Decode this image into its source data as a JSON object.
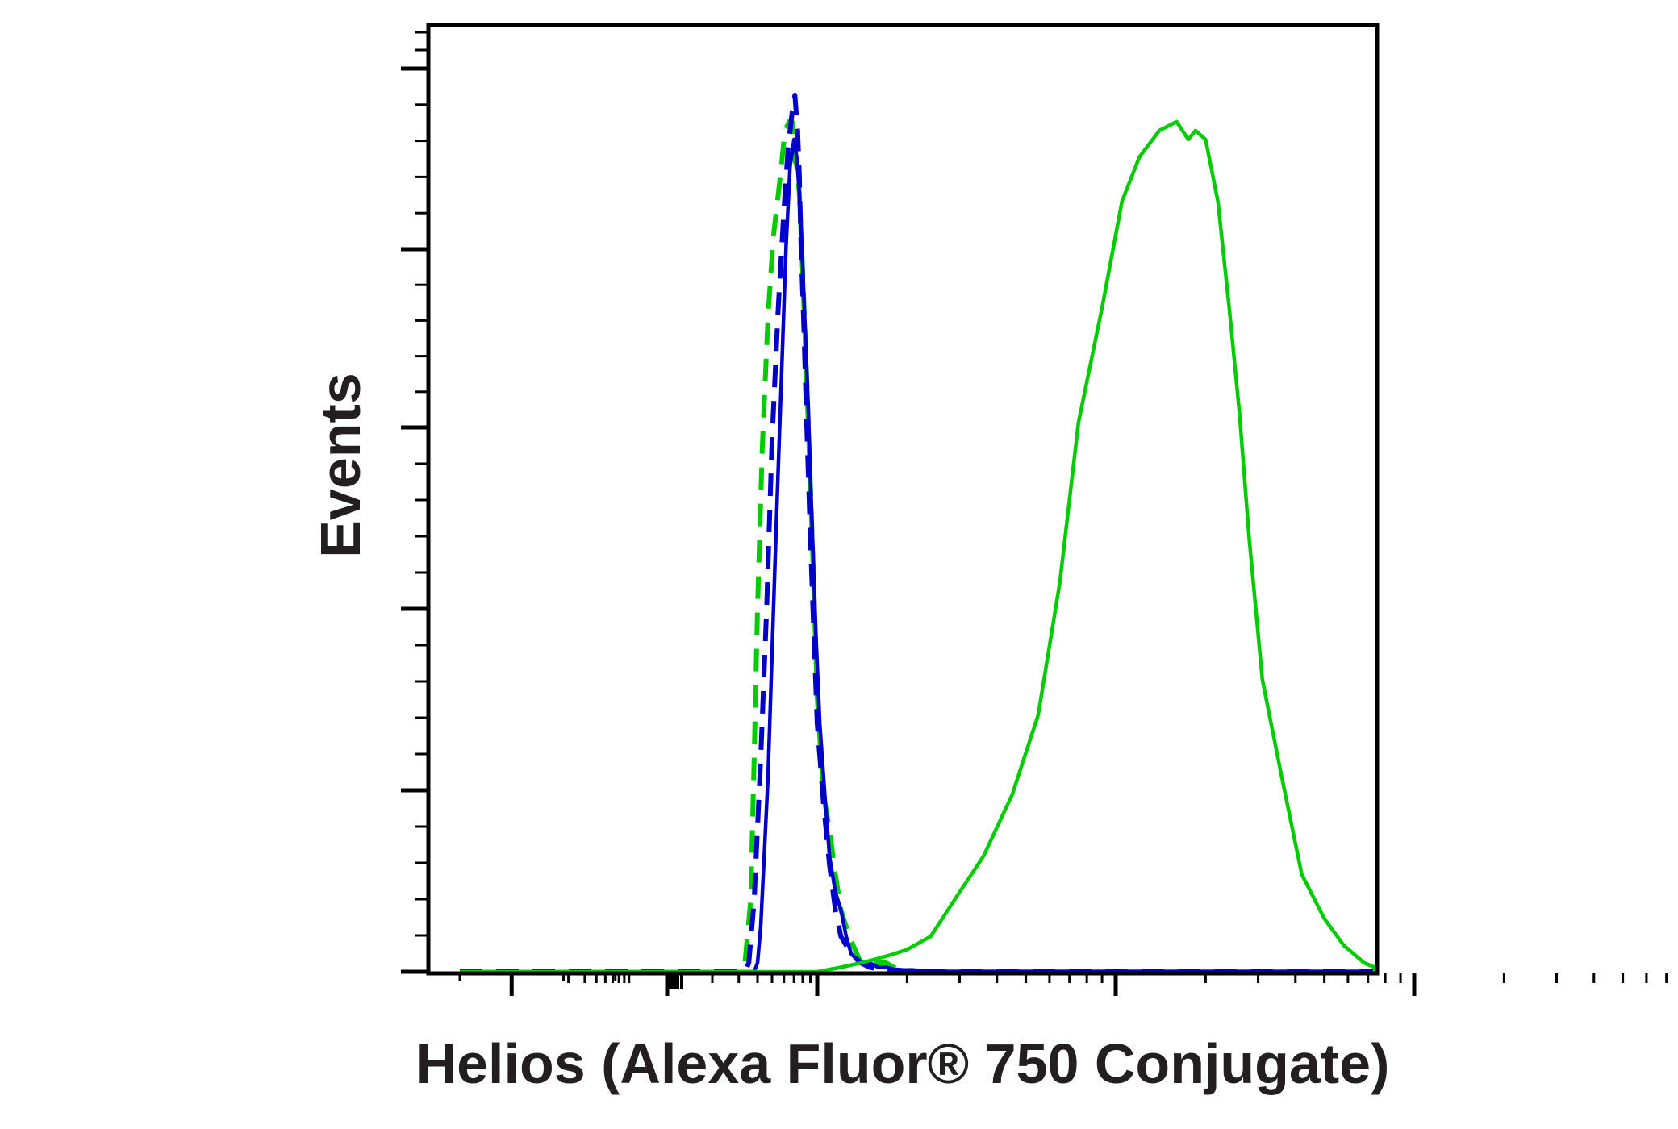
{
  "chart_data": {
    "type": "line",
    "title": "",
    "xlabel": "Helios (Alexa Fluor® 750 Conjugate)",
    "ylabel": "Events",
    "x_scale": "log",
    "xlim": [
      -100,
      1000000
    ],
    "ylim": [
      0,
      1
    ],
    "x_tick_labels": [],
    "y_tick_labels": [],
    "grid": false,
    "legend": "none",
    "series": [
      {
        "style": "dashed",
        "color": "#00cc00",
        "x": [
          -100,
          100,
          200,
          290,
          330,
          360,
          380,
          400,
          430,
          470,
          510,
          560,
          610,
          650,
          680,
          700,
          730,
          760,
          800,
          850,
          900,
          950,
          1000,
          1050,
          1100,
          1150,
          1200,
          1280,
          1400,
          1550,
          1700,
          1800,
          1900,
          2000,
          2200,
          10000,
          1000000
        ],
        "y": [
          0,
          0,
          0,
          0,
          0.01,
          0.08,
          0.24,
          0.41,
          0.59,
          0.74,
          0.83,
          0.89,
          0.95,
          0.96,
          0.96,
          0.92,
          0.91,
          0.88,
          0.79,
          0.67,
          0.55,
          0.43,
          0.31,
          0.2,
          0.16,
          0.11,
          0.07,
          0.04,
          0.01,
          0.01,
          0.01,
          0.005,
          0.003,
          0.002,
          0,
          0,
          0
        ]
      },
      {
        "style": "dashed",
        "color": "#0000cc",
        "x": [
          -100,
          100,
          200,
          330,
          350,
          380,
          420,
          460,
          500,
          550,
          600,
          640,
          680,
          710,
          740,
          760,
          780,
          810,
          850,
          900,
          950,
          1000,
          1050,
          1100,
          1150,
          1200,
          1300,
          1400,
          1500,
          1600,
          1700,
          1800,
          2000,
          10000,
          1000000
        ],
        "y": [
          0,
          0,
          0,
          0,
          0.01,
          0.08,
          0.24,
          0.41,
          0.6,
          0.75,
          0.86,
          0.93,
          0.97,
          0.99,
          0.95,
          0.9,
          0.82,
          0.74,
          0.62,
          0.49,
          0.38,
          0.28,
          0.19,
          0.12,
          0.07,
          0.04,
          0.02,
          0.01,
          0.005,
          0.003,
          0.002,
          0.001,
          0,
          0,
          0
        ]
      },
      {
        "style": "solid",
        "color": "#0000cc",
        "x": [
          -100,
          100,
          200,
          380,
          400,
          420,
          440,
          470,
          500,
          540,
          580,
          620,
          660,
          700,
          730,
          760,
          790,
          830,
          870,
          900,
          940,
          980,
          1020,
          1060,
          1100,
          1150,
          1200,
          1250,
          1300,
          1400,
          1500,
          1600,
          1700,
          1800,
          1950,
          2100,
          2250,
          2400,
          2600,
          10000,
          1000000
        ],
        "y": [
          0,
          0,
          0,
          0,
          0.01,
          0.05,
          0.12,
          0.22,
          0.36,
          0.53,
          0.68,
          0.82,
          0.91,
          0.94,
          0.92,
          0.88,
          0.82,
          0.73,
          0.64,
          0.56,
          0.47,
          0.38,
          0.28,
          0.2,
          0.13,
          0.09,
          0.07,
          0.04,
          0.02,
          0.01,
          0.01,
          0.005,
          0.005,
          0.003,
          0.002,
          0.002,
          0.001,
          0,
          0,
          0,
          0
        ]
      },
      {
        "style": "solid",
        "color": "#00cc00",
        "x": [
          -100,
          100,
          200,
          1000,
          1200,
          1400,
          1600,
          1800,
          2000,
          2400,
          3000,
          3600,
          4500,
          5500,
          6500,
          7500,
          9000,
          10500,
          12000,
          14000,
          16000,
          17500,
          18500,
          20000,
          22000,
          24000,
          26000,
          28000,
          31000,
          36000,
          42000,
          50000,
          58000,
          68000,
          80000,
          90000,
          100000,
          110000,
          130000,
          170000,
          250000,
          500000,
          1000000
        ],
        "y": [
          0,
          0,
          0,
          0,
          0.005,
          0.01,
          0.015,
          0.02,
          0.025,
          0.04,
          0.09,
          0.13,
          0.2,
          0.29,
          0.44,
          0.62,
          0.75,
          0.87,
          0.92,
          0.95,
          0.96,
          0.94,
          0.95,
          0.94,
          0.87,
          0.75,
          0.63,
          0.49,
          0.33,
          0.22,
          0.11,
          0.06,
          0.03,
          0.01,
          0.005,
          0.002,
          0.001,
          0,
          0,
          0,
          0,
          0,
          0
        ]
      }
    ]
  }
}
